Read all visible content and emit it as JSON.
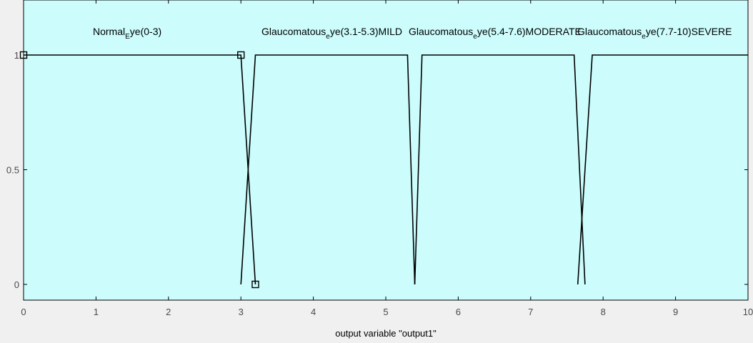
{
  "chart_data": {
    "type": "line",
    "xlabel": "output variable \"output1\"",
    "xlim": [
      0,
      10
    ],
    "ylim": [
      0,
      1
    ],
    "xticks": [
      0,
      1,
      2,
      3,
      4,
      5,
      6,
      7,
      8,
      9,
      10
    ],
    "yticks": [
      0,
      0.5,
      1
    ],
    "ytick_labels": [
      "0",
      "0.5",
      "1"
    ],
    "colors": {
      "plot_background": "#ccfcfc",
      "line": "#000000",
      "frame": "#000000"
    },
    "series": [
      {
        "label": "Normal_Eye(0-3)",
        "label_parts": [
          "Normal",
          "E",
          "ye(0-3)"
        ],
        "x": [
          0,
          3,
          3.2
        ],
        "y": [
          1,
          1,
          0
        ]
      },
      {
        "label": "Glaucomatous_eye(3.1-5.3)MILD",
        "label_parts": [
          "Glaucomatous",
          "e",
          "ye(3.1-5.3)MILD"
        ],
        "x": [
          3,
          3.2,
          5.3,
          5.4
        ],
        "y": [
          0,
          1,
          1,
          0
        ]
      },
      {
        "label": "Glaucomatous_eye(5.4-7.6)MODERATE",
        "label_parts": [
          "Glaucomatous",
          "e",
          "ye(5.4-7.6)MODERATE"
        ],
        "x": [
          5.4,
          5.5,
          7.6,
          7.75
        ],
        "y": [
          0,
          1,
          1,
          0
        ]
      },
      {
        "label": "Glaucomatous_eye(7.7-10)SEVERE",
        "label_parts": [
          "Glaucomatous",
          "e",
          "ye(7.7-10)SEVERE"
        ],
        "x": [
          7.65,
          7.85,
          10
        ],
        "y": [
          0,
          1,
          1
        ]
      }
    ]
  }
}
